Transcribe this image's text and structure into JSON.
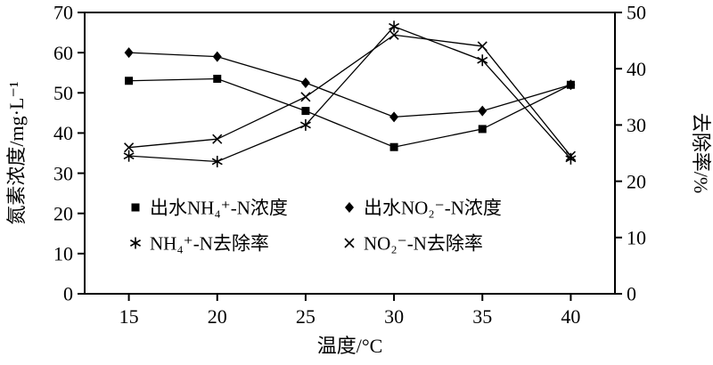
{
  "chart_data": {
    "type": "line",
    "title": "",
    "xlabel": "温度/°C",
    "ylabel_left": "氮素浓度/mg·L⁻¹",
    "ylabel_right": "去除率/%",
    "x": [
      15,
      20,
      25,
      30,
      35,
      40
    ],
    "xlim": [
      12.5,
      42.5
    ],
    "ylim_left": [
      0,
      70
    ],
    "ylim_right": [
      0,
      50
    ],
    "yticks_left": [
      0,
      10,
      20,
      30,
      40,
      50,
      60,
      70
    ],
    "yticks_right": [
      0,
      10,
      20,
      30,
      40,
      50
    ],
    "grid": false,
    "legend_position": "inside-lower-left",
    "series": [
      {
        "name": "出水NH₄⁺-N浓度",
        "axis": "left",
        "marker": "square",
        "values": [
          53,
          53.5,
          45.5,
          36.5,
          41,
          52
        ]
      },
      {
        "name": "出水NO₂⁻-N浓度",
        "axis": "left",
        "marker": "diamond",
        "values": [
          60,
          59,
          52.5,
          44,
          45.5,
          52
        ]
      },
      {
        "name": "NH₄⁺-N去除率",
        "axis": "right",
        "marker": "asterisk",
        "values": [
          24.5,
          23.5,
          30,
          47.5,
          41.5,
          24
        ]
      },
      {
        "name": "NO₂⁻-N去除率",
        "axis": "right",
        "marker": "x",
        "values": [
          26,
          27.5,
          35,
          46,
          44,
          24.5
        ]
      }
    ],
    "colors": {
      "line": "#000000",
      "background": "#ffffff"
    }
  }
}
